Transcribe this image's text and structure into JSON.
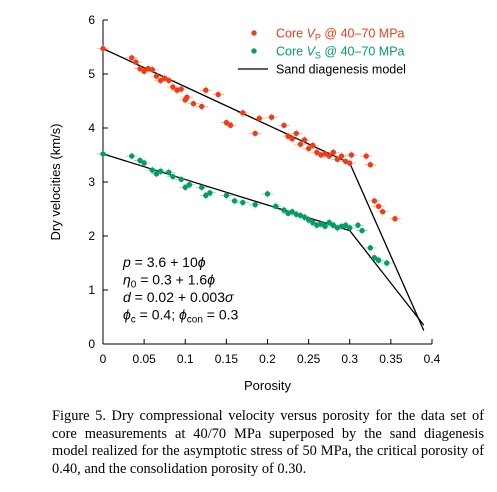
{
  "chart_data": {
    "type": "scatter",
    "xlabel": "Porosity",
    "ylabel": "Dry velocities (km/s)",
    "xlim": [
      0,
      0.4
    ],
    "ylim": [
      0,
      6
    ],
    "xticks": [
      "0",
      "0.05",
      "0.1",
      "0.15",
      "0.2",
      "0.25",
      "0.3",
      "0.35",
      "0.4"
    ],
    "yticks": [
      "0",
      "1",
      "2",
      "3",
      "4",
      "5",
      "6"
    ],
    "legend_position": "top-right",
    "series": [
      {
        "name": "Core VP @ 40–70 MPa",
        "legend": {
          "pre": "Core ",
          "sym": "V",
          "sub": "P",
          "post": " @ 40–70 MPa"
        },
        "color": "#e8401c",
        "kind": "points",
        "points": [
          [
            0.0,
            5.47
          ],
          [
            0.035,
            5.3
          ],
          [
            0.04,
            5.22
          ],
          [
            0.045,
            5.1
          ],
          [
            0.05,
            5.05
          ],
          [
            0.055,
            5.1
          ],
          [
            0.06,
            5.08
          ],
          [
            0.065,
            4.96
          ],
          [
            0.07,
            4.88
          ],
          [
            0.075,
            4.92
          ],
          [
            0.08,
            4.88
          ],
          [
            0.085,
            4.76
          ],
          [
            0.09,
            4.7
          ],
          [
            0.095,
            4.72
          ],
          [
            0.1,
            4.52
          ],
          [
            0.102,
            4.57
          ],
          [
            0.11,
            4.45
          ],
          [
            0.12,
            4.4
          ],
          [
            0.125,
            4.7
          ],
          [
            0.14,
            4.62
          ],
          [
            0.15,
            4.1
          ],
          [
            0.155,
            4.05
          ],
          [
            0.17,
            4.28
          ],
          [
            0.185,
            3.9
          ],
          [
            0.19,
            4.18
          ],
          [
            0.205,
            4.2
          ],
          [
            0.22,
            4.05
          ],
          [
            0.225,
            3.85
          ],
          [
            0.23,
            3.8
          ],
          [
            0.235,
            3.9
          ],
          [
            0.24,
            3.7
          ],
          [
            0.245,
            3.78
          ],
          [
            0.25,
            3.62
          ],
          [
            0.255,
            3.68
          ],
          [
            0.26,
            3.55
          ],
          [
            0.265,
            3.5
          ],
          [
            0.27,
            3.52
          ],
          [
            0.275,
            3.48
          ],
          [
            0.28,
            3.55
          ],
          [
            0.285,
            3.42
          ],
          [
            0.29,
            3.48
          ],
          [
            0.295,
            3.38
          ],
          [
            0.3,
            3.35
          ],
          [
            0.302,
            3.5
          ],
          [
            0.32,
            3.48
          ],
          [
            0.325,
            3.32
          ],
          [
            0.33,
            2.65
          ],
          [
            0.335,
            2.55
          ],
          [
            0.34,
            2.45
          ],
          [
            0.355,
            2.32
          ]
        ]
      },
      {
        "name": "Core VS @ 40–70 MPa",
        "legend": {
          "pre": "Core ",
          "sym": "V",
          "sub": "S",
          "post": " @ 40–70 MPa"
        },
        "color": "#0a9a6a",
        "kind": "points",
        "points": [
          [
            0.0,
            3.52
          ],
          [
            0.035,
            3.48
          ],
          [
            0.045,
            3.4
          ],
          [
            0.05,
            3.35
          ],
          [
            0.06,
            3.22
          ],
          [
            0.065,
            3.15
          ],
          [
            0.07,
            3.2
          ],
          [
            0.08,
            3.18
          ],
          [
            0.085,
            3.1
          ],
          [
            0.095,
            3.05
          ],
          [
            0.1,
            2.9
          ],
          [
            0.105,
            2.95
          ],
          [
            0.12,
            2.9
          ],
          [
            0.125,
            2.75
          ],
          [
            0.13,
            2.8
          ],
          [
            0.15,
            2.75
          ],
          [
            0.16,
            2.65
          ],
          [
            0.17,
            2.62
          ],
          [
            0.185,
            2.58
          ],
          [
            0.2,
            2.78
          ],
          [
            0.21,
            2.55
          ],
          [
            0.22,
            2.48
          ],
          [
            0.225,
            2.42
          ],
          [
            0.23,
            2.45
          ],
          [
            0.235,
            2.4
          ],
          [
            0.24,
            2.38
          ],
          [
            0.245,
            2.35
          ],
          [
            0.25,
            2.3
          ],
          [
            0.255,
            2.25
          ],
          [
            0.26,
            2.2
          ],
          [
            0.265,
            2.22
          ],
          [
            0.27,
            2.18
          ],
          [
            0.275,
            2.25
          ],
          [
            0.28,
            2.2
          ],
          [
            0.285,
            2.15
          ],
          [
            0.29,
            2.18
          ],
          [
            0.295,
            2.2
          ],
          [
            0.3,
            2.15
          ],
          [
            0.31,
            2.2
          ],
          [
            0.315,
            2.1
          ],
          [
            0.325,
            1.78
          ],
          [
            0.33,
            1.6
          ],
          [
            0.335,
            1.55
          ],
          [
            0.345,
            1.5
          ]
        ]
      },
      {
        "name": "Sand diagenesis model",
        "legend": {
          "pre": "Sand diagenesis model",
          "sym": "",
          "sub": "",
          "post": ""
        },
        "color": "#000000",
        "kind": "lines",
        "lines": [
          [
            [
              0.0,
              5.47
            ],
            [
              0.3,
              3.35
            ],
            [
              0.39,
              0.25
            ]
          ],
          [
            [
              0.0,
              3.52
            ],
            [
              0.3,
              2.1
            ],
            [
              0.39,
              0.35
            ]
          ]
        ]
      }
    ],
    "annotations": [
      {
        "parts": [
          [
            "i",
            "p"
          ],
          [
            "t",
            " = 3.6 + 10"
          ],
          [
            "i",
            "ϕ"
          ]
        ]
      },
      {
        "parts": [
          [
            "i",
            "η"
          ],
          [
            "sub",
            "0"
          ],
          [
            "t",
            " = 0.3 + 1.6"
          ],
          [
            "i",
            "ϕ"
          ]
        ]
      },
      {
        "parts": [
          [
            "i",
            "d"
          ],
          [
            "t",
            " = 0.02 + 0.003"
          ],
          [
            "i",
            "σ"
          ]
        ]
      },
      {
        "parts": [
          [
            "i",
            "ϕ"
          ],
          [
            "sub",
            "c"
          ],
          [
            "t",
            " = 0.4; "
          ],
          [
            "i",
            "ϕ"
          ],
          [
            "sub",
            "con"
          ],
          [
            "t",
            " = 0.3"
          ]
        ]
      }
    ]
  },
  "caption": "Figure 5. Dry compressional velocity versus porosity for the data set of core measurements at 40/70 MPa superposed by the sand diagenesis model realized for the asymptotic stress of 50 MPa, the critical porosity of 0.40, and the consolidation porosity of 0.30."
}
